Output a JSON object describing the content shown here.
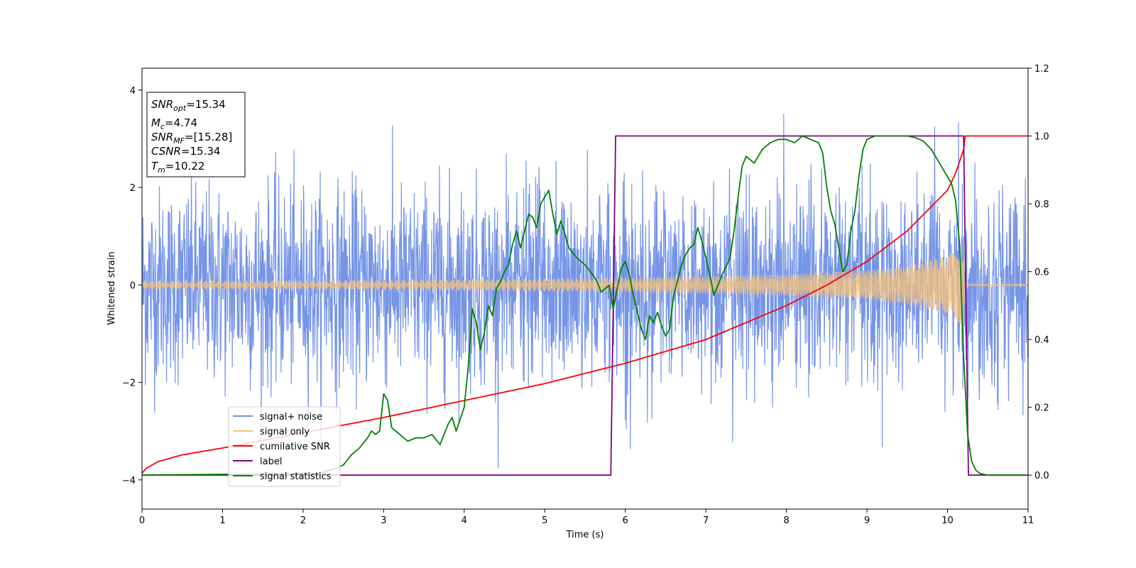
{
  "chart_data": {
    "type": "line",
    "title": "",
    "xlabel": "Time (s)",
    "ylabel": "Whitened strain",
    "xlim": [
      0,
      11
    ],
    "ylim": [
      -4.6,
      4.45
    ],
    "y2lim": [
      -0.1,
      1.2
    ],
    "xticks": [
      "0",
      "1",
      "2",
      "3",
      "4",
      "5",
      "6",
      "7",
      "8",
      "9",
      "10",
      "11"
    ],
    "yticks": [
      "−4",
      "−2",
      "0",
      "2",
      "4"
    ],
    "y2ticks": [
      "0.0",
      "0.2",
      "0.4",
      "0.6",
      "0.8",
      "1.0",
      "1.2"
    ],
    "grid": false,
    "legend_position": "lower-left",
    "annotation": {
      "lines": [
        {
          "sym": "SNR",
          "sub": "opt",
          "value": "=15.34"
        },
        {
          "sym": "M",
          "sub": "c",
          "value": "=4.74"
        },
        {
          "sym": "SNR",
          "sub": "MF",
          "value": "=[15.28]"
        },
        {
          "sym": "CSNR",
          "sub": "",
          "value": "=15.34"
        },
        {
          "sym": "T",
          "sub": "m",
          "value": "=10.22"
        }
      ]
    },
    "series": [
      {
        "name": "signal+ noise",
        "axis": "left",
        "color": "#6f8fe6",
        "description_values": {
          "std": 1.0,
          "range": [
            -3.85,
            3.85
          ],
          "t_range": [
            0,
            11
          ]
        }
      },
      {
        "name": "signal only",
        "axis": "left",
        "color": "#f5c27a",
        "envelope": {
          "t": [
            0,
            2,
            4,
            6,
            8,
            9,
            9.5,
            10,
            10.2,
            10.22,
            11
          ],
          "amp": [
            0.08,
            0.09,
            0.11,
            0.15,
            0.22,
            0.3,
            0.4,
            0.6,
            0.85,
            0.02,
            0.02
          ]
        }
      },
      {
        "name": "cumilative SNR",
        "axis": "right",
        "color": "#ff0000",
        "x": [
          0,
          0.05,
          0.2,
          0.5,
          1,
          2,
          3,
          4,
          5,
          6,
          7,
          8,
          8.5,
          9,
          9.5,
          10,
          10.1,
          10.2,
          10.22,
          11
        ],
        "y": [
          0.005,
          0.02,
          0.04,
          0.06,
          0.08,
          0.125,
          0.17,
          0.22,
          0.27,
          0.33,
          0.4,
          0.5,
          0.56,
          0.63,
          0.72,
          0.84,
          0.89,
          0.96,
          1.0,
          1.0
        ]
      },
      {
        "name": "label",
        "axis": "right",
        "color": "#800080",
        "x": [
          0,
          5.82,
          5.88,
          10.2,
          10.26,
          11
        ],
        "y": [
          0,
          0,
          1,
          1,
          0,
          0
        ]
      },
      {
        "name": "signal statistics",
        "axis": "right",
        "color": "#008000",
        "x": [
          0,
          2.2,
          2.4,
          2.5,
          2.6,
          2.7,
          2.8,
          2.85,
          2.9,
          2.95,
          3.0,
          3.05,
          3.1,
          3.2,
          3.3,
          3.4,
          3.5,
          3.6,
          3.7,
          3.8,
          3.85,
          3.9,
          4.0,
          4.05,
          4.1,
          4.15,
          4.2,
          4.25,
          4.3,
          4.35,
          4.4,
          4.45,
          4.5,
          4.55,
          4.6,
          4.65,
          4.7,
          4.75,
          4.8,
          4.85,
          4.9,
          4.95,
          5.0,
          5.05,
          5.1,
          5.15,
          5.2,
          5.3,
          5.4,
          5.5,
          5.6,
          5.65,
          5.7,
          5.75,
          5.8,
          5.85,
          5.9,
          5.95,
          6.0,
          6.05,
          6.1,
          6.2,
          6.25,
          6.3,
          6.35,
          6.4,
          6.45,
          6.5,
          6.55,
          6.6,
          6.7,
          6.75,
          6.8,
          6.85,
          6.9,
          6.95,
          7.0,
          7.05,
          7.1,
          7.15,
          7.2,
          7.3,
          7.35,
          7.4,
          7.45,
          7.5,
          7.6,
          7.65,
          7.7,
          7.8,
          7.9,
          8.0,
          8.1,
          8.2,
          8.3,
          8.4,
          8.45,
          8.5,
          8.55,
          8.6,
          8.65,
          8.7,
          8.75,
          8.8,
          8.85,
          8.9,
          8.95,
          9.0,
          9.1,
          9.3,
          9.5,
          9.6,
          9.7,
          9.8,
          9.9,
          10.0,
          10.05,
          10.1,
          10.15,
          10.2,
          10.25,
          10.3,
          10.35,
          10.4,
          10.5,
          10.6,
          11
        ],
        "y": [
          0.0,
          0.005,
          0.02,
          0.03,
          0.06,
          0.08,
          0.11,
          0.13,
          0.12,
          0.13,
          0.24,
          0.22,
          0.14,
          0.12,
          0.1,
          0.11,
          0.11,
          0.12,
          0.09,
          0.15,
          0.17,
          0.13,
          0.2,
          0.32,
          0.49,
          0.45,
          0.37,
          0.42,
          0.5,
          0.47,
          0.55,
          0.57,
          0.6,
          0.62,
          0.68,
          0.72,
          0.67,
          0.72,
          0.77,
          0.76,
          0.73,
          0.8,
          0.82,
          0.84,
          0.77,
          0.71,
          0.75,
          0.67,
          0.64,
          0.62,
          0.59,
          0.57,
          0.54,
          0.55,
          0.56,
          0.49,
          0.55,
          0.61,
          0.63,
          0.59,
          0.53,
          0.43,
          0.4,
          0.47,
          0.45,
          0.48,
          0.44,
          0.41,
          0.43,
          0.53,
          0.62,
          0.65,
          0.67,
          0.68,
          0.73,
          0.69,
          0.64,
          0.59,
          0.53,
          0.56,
          0.59,
          0.64,
          0.72,
          0.82,
          0.91,
          0.94,
          0.92,
          0.94,
          0.96,
          0.98,
          0.99,
          0.99,
          0.98,
          1.0,
          0.99,
          0.98,
          0.95,
          0.85,
          0.78,
          0.74,
          0.67,
          0.6,
          0.62,
          0.72,
          0.78,
          0.88,
          0.96,
          0.99,
          1.0,
          1.0,
          1.0,
          0.995,
          0.985,
          0.96,
          0.92,
          0.88,
          0.86,
          0.81,
          0.68,
          0.35,
          0.12,
          0.04,
          0.015,
          0.005,
          0.0,
          0.0,
          0.0
        ]
      }
    ]
  }
}
